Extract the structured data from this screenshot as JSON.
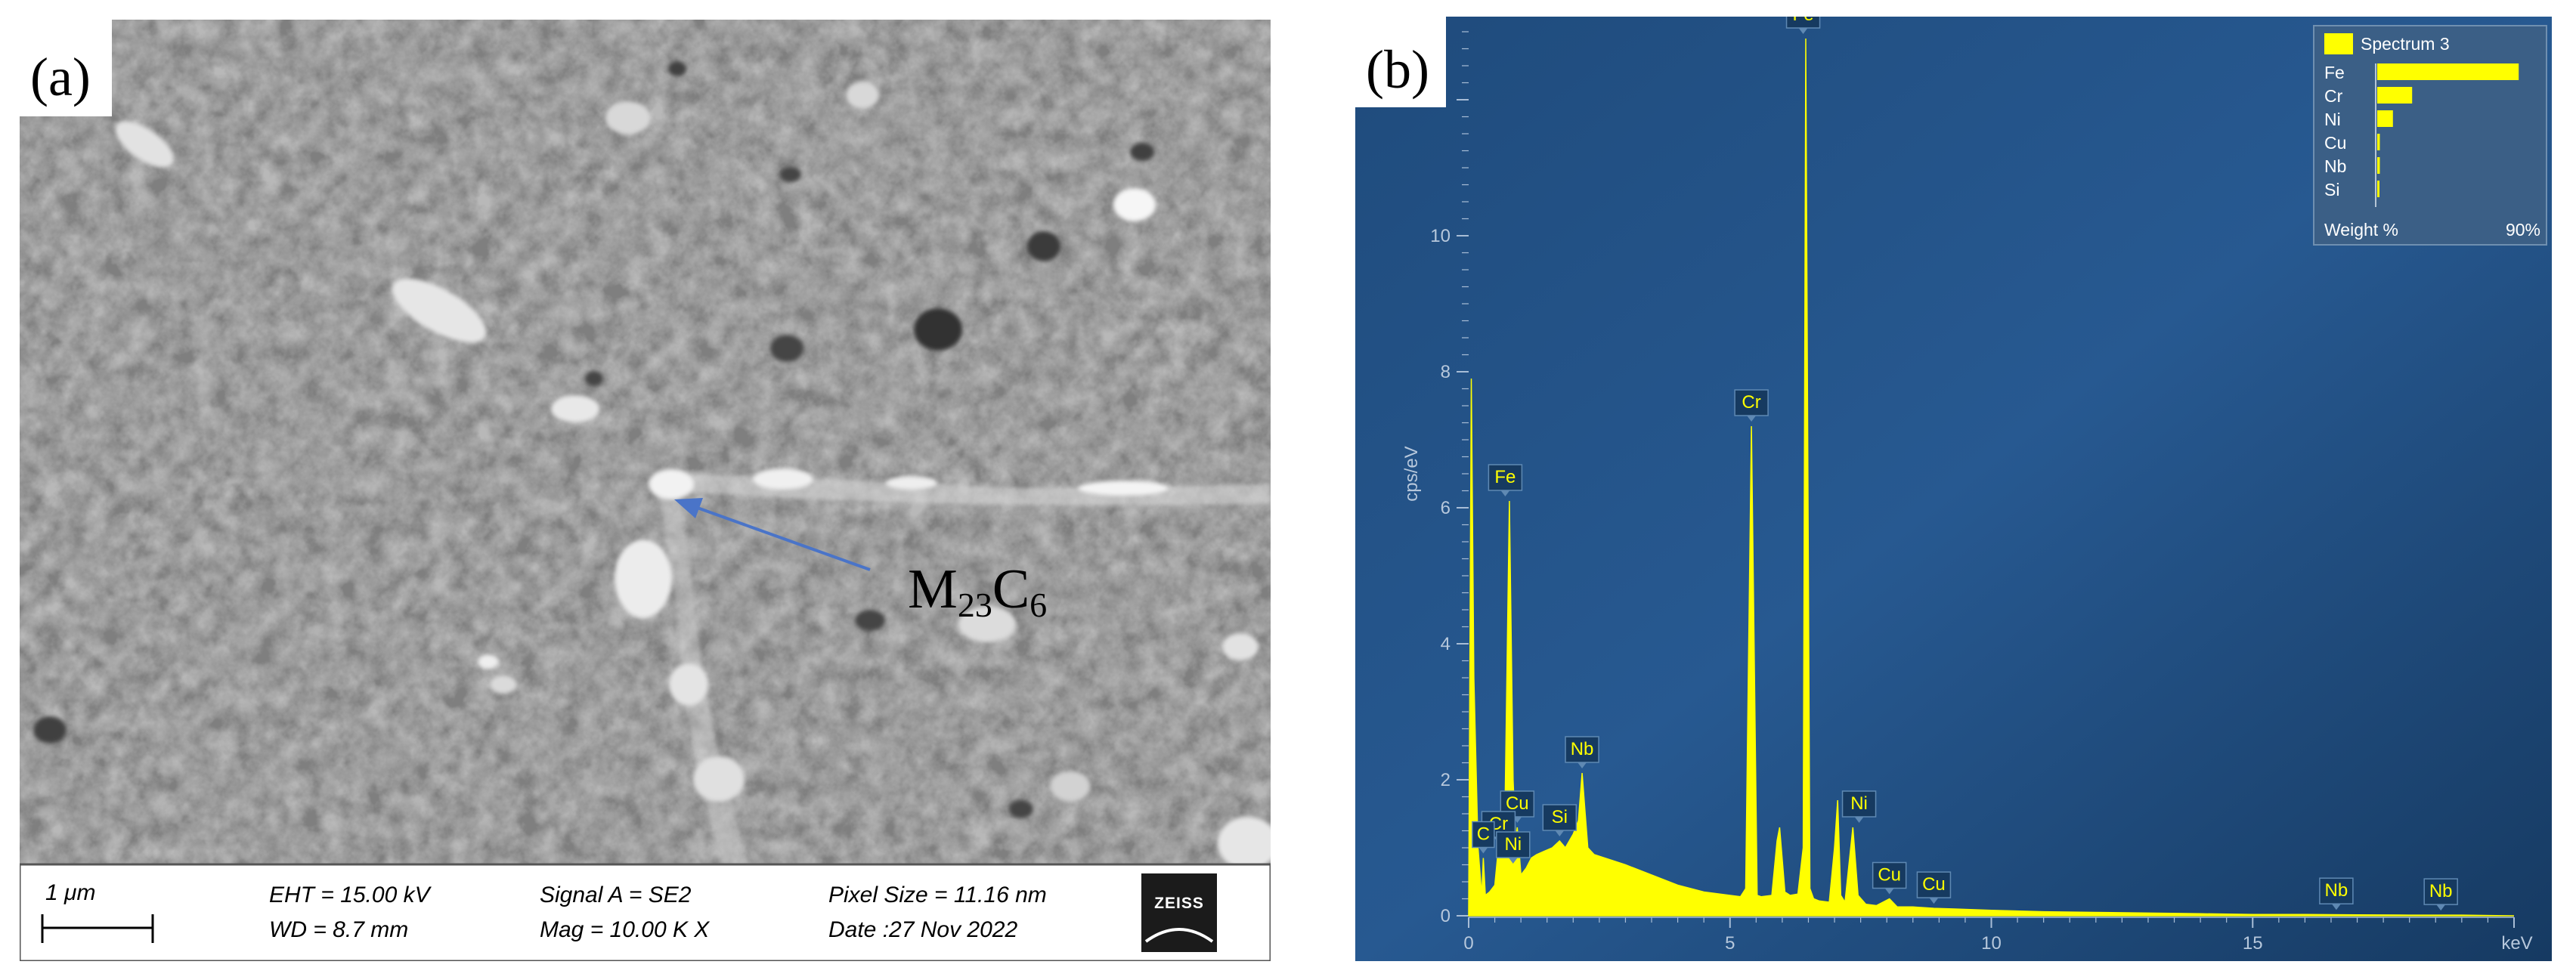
{
  "panel_a": {
    "label": "(a)",
    "annotation": {
      "base1": "M",
      "sub1": "23",
      "base2": "C",
      "sub2": "6"
    },
    "scale_bar_label": "1 μm",
    "info": {
      "eht": "EHT = 15.00 kV",
      "wd": "WD =  8.7 mm",
      "signal": "Signal A = SE2",
      "mag": "Mag =    10.00 K X",
      "pixel": "Pixel Size = 11.16 nm",
      "date": "Date :27 Nov 2022"
    },
    "logo_text": "ZEISS"
  },
  "panel_b": {
    "label": "(b)"
  },
  "chart_data": {
    "type": "line",
    "title": "",
    "xlabel": "keV",
    "ylabel": "cps/eV",
    "xlim": [
      0,
      20
    ],
    "ylim": [
      0,
      13
    ],
    "x_ticks": [
      0,
      5,
      10,
      15
    ],
    "y_ticks": [
      0,
      2,
      4,
      6,
      8,
      10
    ],
    "colors": {
      "background": "#1d4774",
      "fill": "#ffff00",
      "label_text": "#ffff00"
    },
    "series": [
      {
        "name": "Spectrum 3",
        "x": [
          0,
          0.05,
          0.1,
          0.18,
          0.25,
          0.28,
          0.32,
          0.4,
          0.5,
          0.57,
          0.62,
          0.7,
          0.78,
          0.85,
          0.9,
          0.93,
          1.0,
          1.1,
          1.2,
          1.3,
          1.45,
          1.6,
          1.74,
          1.85,
          2.0,
          2.1,
          2.17,
          2.22,
          2.28,
          2.4,
          2.6,
          3.0,
          3.5,
          4.0,
          4.5,
          5.0,
          5.2,
          5.3,
          5.41,
          5.52,
          5.6,
          5.8,
          5.9,
          5.95,
          6.05,
          6.15,
          6.3,
          6.4,
          6.45,
          6.53,
          6.6,
          6.7,
          6.9,
          7.0,
          7.06,
          7.12,
          7.2,
          7.35,
          7.45,
          7.6,
          7.8,
          8.05,
          8.2,
          8.5,
          8.9,
          9.3,
          10,
          11,
          12,
          13,
          14,
          15,
          16,
          17,
          18,
          19,
          20
        ],
        "y": [
          0,
          7.9,
          3.5,
          1.0,
          0.3,
          0.85,
          0.3,
          0.35,
          0.45,
          1.0,
          0.9,
          1.8,
          6.1,
          2.0,
          1.1,
          1.3,
          0.6,
          0.7,
          0.85,
          0.9,
          0.95,
          1.0,
          1.1,
          1.0,
          1.2,
          1.4,
          2.1,
          1.6,
          1.0,
          0.9,
          0.85,
          0.75,
          0.6,
          0.45,
          0.35,
          0.3,
          0.28,
          0.4,
          7.2,
          0.3,
          0.28,
          0.3,
          1.1,
          1.3,
          0.35,
          0.3,
          0.32,
          1.0,
          12.9,
          0.4,
          0.25,
          0.22,
          0.2,
          1.0,
          1.7,
          0.3,
          0.2,
          1.3,
          0.3,
          0.17,
          0.15,
          0.25,
          0.13,
          0.13,
          0.11,
          0.1,
          0.08,
          0.06,
          0.05,
          0.04,
          0.03,
          0.02,
          0.02,
          0.015,
          0.01,
          0.01,
          0.0
        ]
      }
    ],
    "peak_labels": [
      {
        "text": "Fe",
        "x": 6.4,
        "y": 12.9
      },
      {
        "text": "Cr",
        "x": 5.41,
        "y": 7.2
      },
      {
        "text": "Fe",
        "x": 0.7,
        "y": 6.1
      },
      {
        "text": "Nb",
        "x": 2.17,
        "y": 2.1
      },
      {
        "text": "Cu",
        "x": 0.93,
        "y": 1.3
      },
      {
        "text": "Cr",
        "x": 0.57,
        "y": 1.0
      },
      {
        "text": "Ni",
        "x": 0.85,
        "y": 0.7
      },
      {
        "text": "C",
        "x": 0.28,
        "y": 0.85
      },
      {
        "text": "Si",
        "x": 1.74,
        "y": 1.1
      },
      {
        "text": "Ni",
        "x": 7.47,
        "y": 1.3
      },
      {
        "text": "Cu",
        "x": 8.05,
        "y": 0.25
      },
      {
        "text": "Cu",
        "x": 8.9,
        "y": 0.11
      },
      {
        "text": "Nb",
        "x": 16.6,
        "y": 0.02
      },
      {
        "text": "Nb",
        "x": 18.6,
        "y": 0.01
      }
    ],
    "legend": {
      "title": "Spectrum 3",
      "position": "top-right",
      "axis_label": "Weight %",
      "axis_max_label": "90%",
      "axis_max": 90,
      "items": [
        {
          "label": "Fe",
          "value": 81,
          "label_color": "#ffffff"
        },
        {
          "label": "Cr",
          "value": 20,
          "label_color": "#ffffff"
        },
        {
          "label": "Ni",
          "value": 9,
          "label_color": "#ffffff"
        },
        {
          "label": "Cu",
          "value": 1.5,
          "label_color": "#ff2a2a"
        },
        {
          "label": "Nb",
          "value": 1.5,
          "label_color": "#ffffff"
        },
        {
          "label": "Si",
          "value": 0.6,
          "label_color": "#ff2a2a"
        }
      ]
    }
  }
}
